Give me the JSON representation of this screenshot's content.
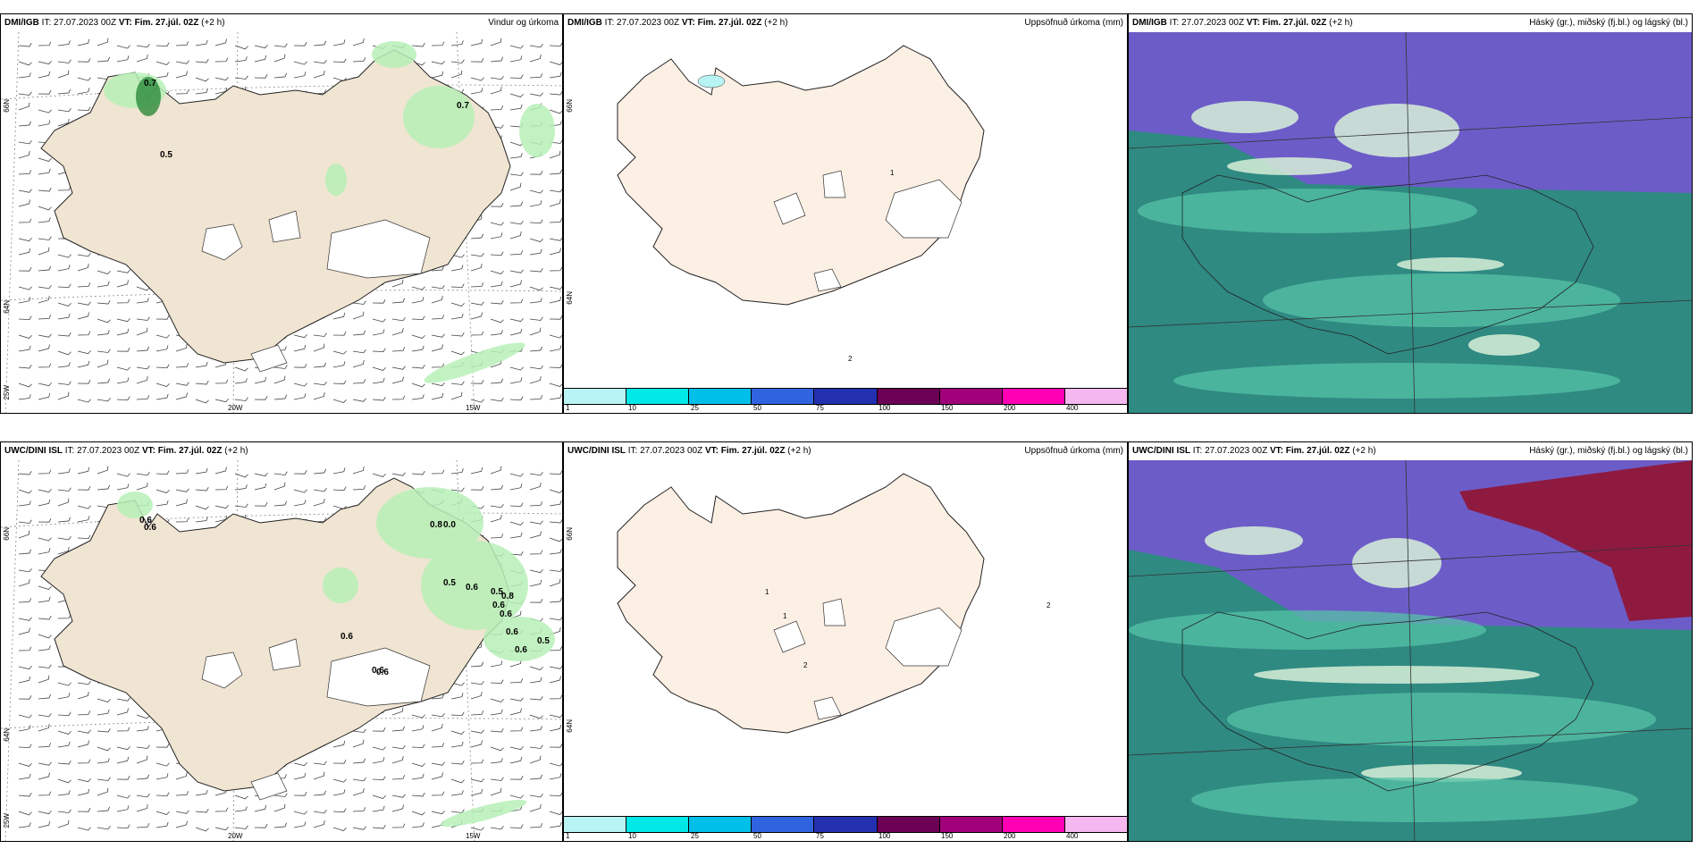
{
  "rows": [
    {
      "model": "DMI/IGB",
      "it_label": "IT:",
      "it_value": "27.07.2023 00Z",
      "vt_label": "VT:",
      "vt_value": "Fim. 27.júl. 02Z",
      "vt_suffix": "(+2 h)",
      "panels": {
        "wind": {
          "title": "Vindur og úrkoma",
          "lon_labels": [
            "20W",
            "15W"
          ],
          "lat_labels": [
            "66N",
            "64N",
            "25W"
          ],
          "value_labels": [
            "0.7",
            "0.7",
            "0.5"
          ]
        },
        "precip": {
          "title": "Uppsöfnuð úrkoma (mm)",
          "lat_labels": [
            "66N",
            "64N"
          ],
          "value_labels": [
            "1",
            "2"
          ]
        },
        "cloud": {
          "title": "Háský (gr.), miðský (fj.bl.) og lágský (bl.)"
        }
      }
    },
    {
      "model": "UWC/DINI ISL",
      "it_label": "IT:",
      "it_value": "27.07.2023 00Z",
      "vt_label": "VT:",
      "vt_value": "Fim. 27.júl. 02Z",
      "vt_suffix": "(+2 h)",
      "panels": {
        "wind": {
          "title": "",
          "lon_labels": [
            "20W",
            "15W"
          ],
          "lat_labels": [
            "66N",
            "64N",
            "25W"
          ],
          "value_labels": [
            "0.6",
            "0.6",
            "0.8",
            "0.0",
            "0.5",
            "0.6",
            "0.5",
            "0.8",
            "0.6",
            "0.6",
            "0.6",
            "0.5",
            "0.6",
            "0.6",
            "0.6",
            "0.6"
          ]
        },
        "precip": {
          "title": "Uppsöfnuð úrkoma (mm)",
          "lat_labels": [
            "66N",
            "64N"
          ],
          "value_labels": [
            "1",
            "2",
            "1",
            "2"
          ]
        },
        "cloud": {
          "title": "Háský (gr.), miðský (fj.bl.) og lágský (bl.)"
        }
      }
    }
  ],
  "precip_legend": {
    "labels": [
      "1",
      "10",
      "25",
      "50",
      "75",
      "100",
      "150",
      "200",
      "400"
    ],
    "colors": [
      "#b8f4f4",
      "#00e8e8",
      "#00bfe8",
      "#2f63e0",
      "#2330b0",
      "#6b0055",
      "#a0007a",
      "#ff00b4",
      "#f5b7f0"
    ]
  },
  "colors": {
    "land": "#f0e4d2",
    "land_precip": "#fcefe4",
    "green_precip": "#b8f0b8",
    "dark_green": "#2a8a3a",
    "cloud_high": "#6c5cc8",
    "cloud_low": "#2f8a82",
    "cloud_mid": "#56c2a6",
    "cloud_bright": "#d8f0d8",
    "cloud_red": "#8e1a40"
  }
}
